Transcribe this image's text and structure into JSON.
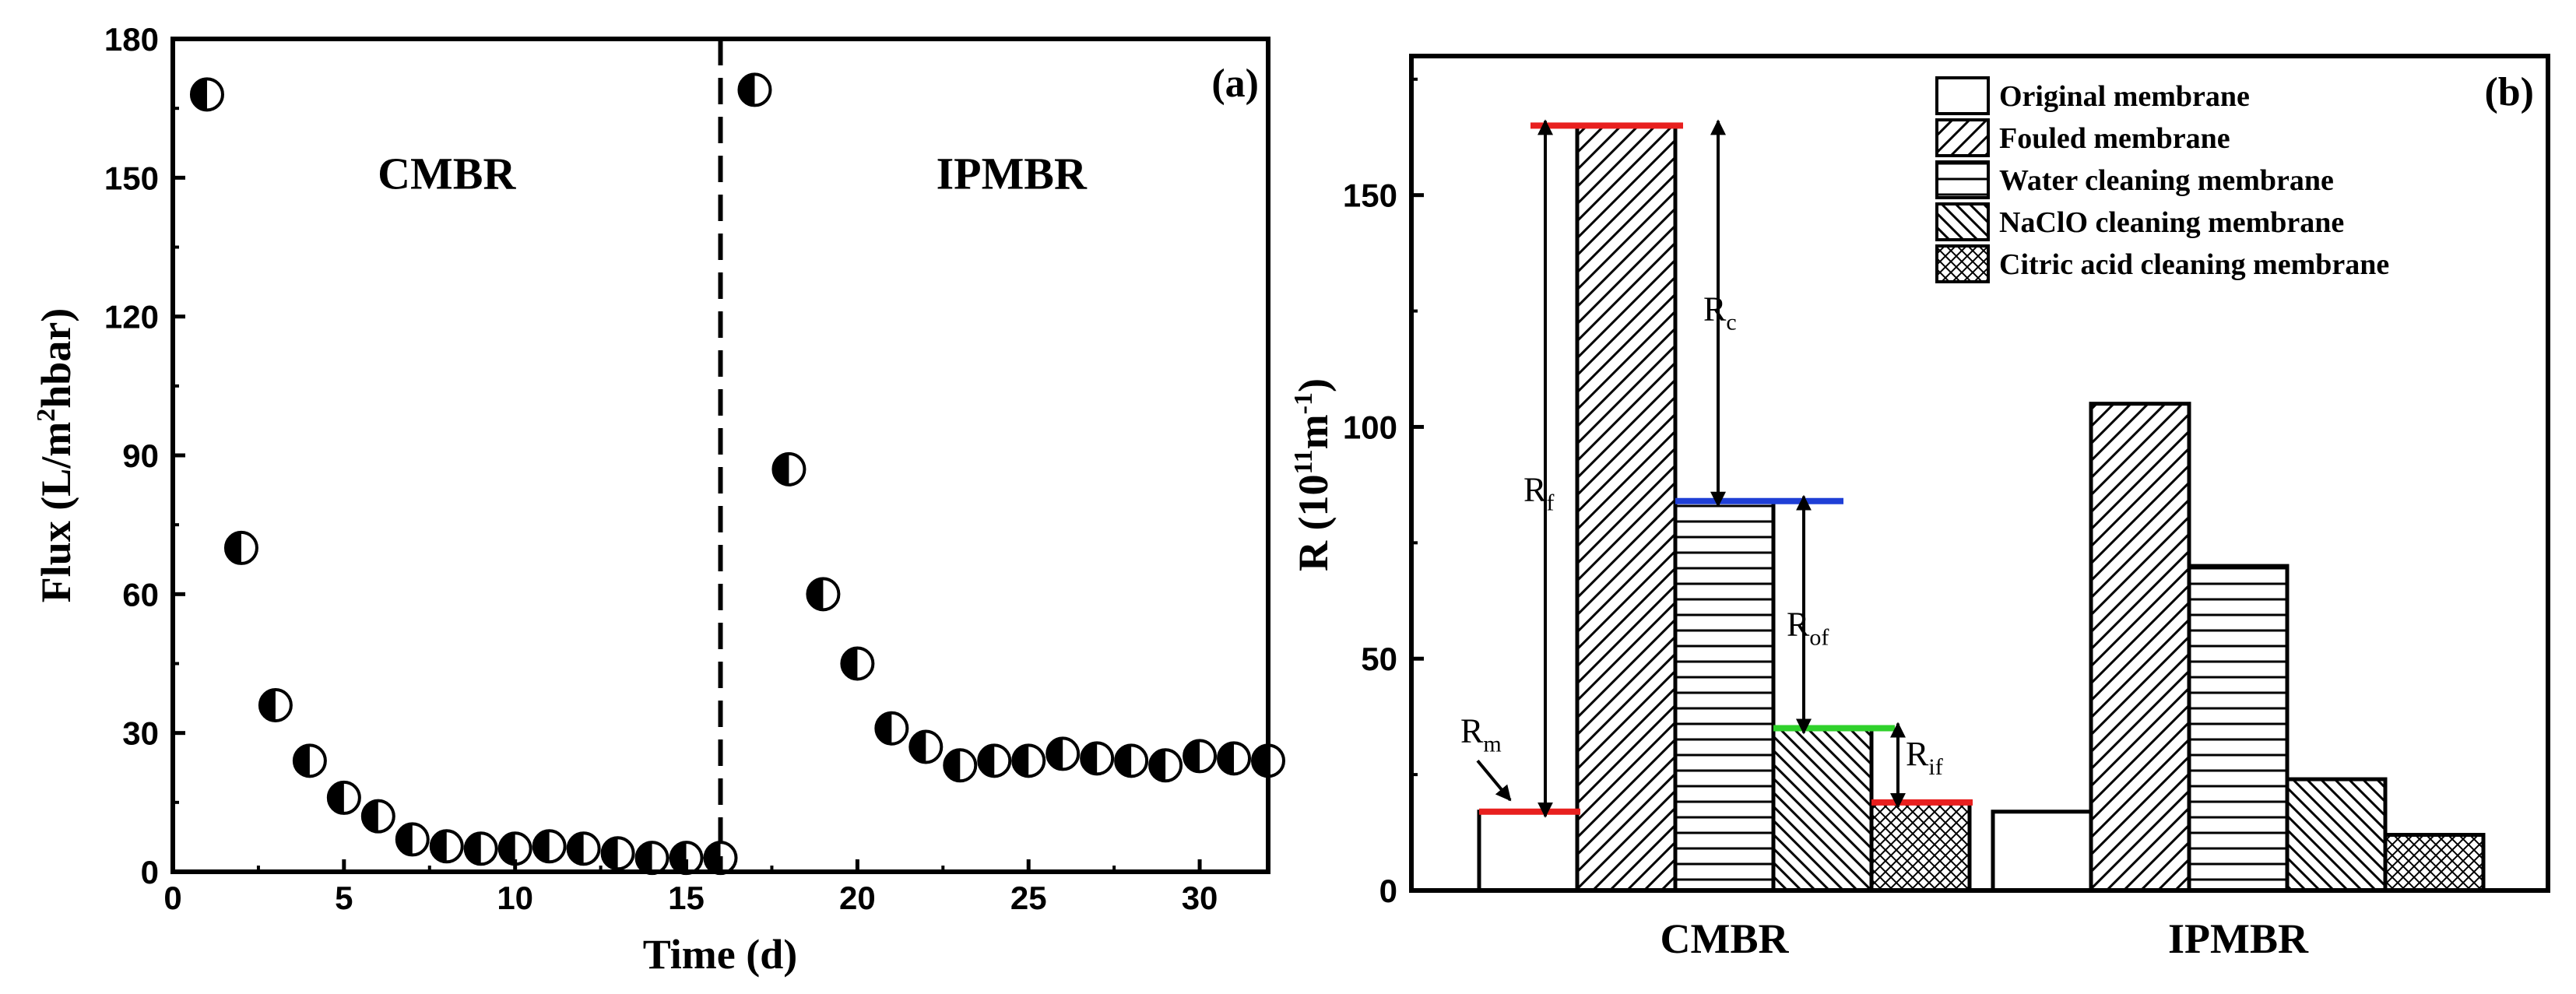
{
  "chart_data": [
    {
      "panel": "(a)",
      "type": "scatter",
      "xlabel": "Time (d)",
      "ylabel_main": "Flux (L/m",
      "ylabel_sup": "2",
      "ylabel_tail": "hbar)",
      "xlim": [
        0,
        32
      ],
      "ylim": [
        0,
        180
      ],
      "xticks": [
        "0",
        "5",
        "10",
        "15",
        "20",
        "25",
        "30"
      ],
      "yticks": [
        "0",
        "30",
        "60",
        "90",
        "120",
        "150",
        "180"
      ],
      "divider_x": 16,
      "annotations": [
        {
          "text": "CMBR",
          "x": 8,
          "y": 151
        },
        {
          "text": "IPMBR",
          "x": 24.5,
          "y": 151
        }
      ],
      "series": [
        {
          "name": "Flux",
          "x": [
            1,
            2,
            3,
            4,
            5,
            6,
            7,
            8,
            9,
            10,
            11,
            12,
            13,
            14,
            15,
            16,
            17,
            18,
            19,
            20,
            21,
            22,
            23,
            24,
            25,
            26,
            27,
            28,
            29,
            30,
            31,
            32
          ],
          "y": [
            168,
            70,
            36,
            24,
            16,
            12,
            7,
            5.5,
            5,
            5,
            5.5,
            5,
            4,
            3,
            3,
            3,
            169,
            87,
            60,
            45,
            31,
            27,
            23,
            24,
            24,
            25.5,
            24.5,
            24,
            23,
            25,
            24.5,
            24
          ]
        }
      ]
    },
    {
      "panel": "(b)",
      "type": "bar",
      "ylabel_main": "R (10",
      "ylabel_sup1": "11",
      "ylabel_mid": "m",
      "ylabel_sup2": "-1",
      "ylabel_tail": ")",
      "ylim": [
        0,
        180
      ],
      "yticks": [
        "0",
        "50",
        "100",
        "150"
      ],
      "categories": [
        "CMBR",
        "IPMBR"
      ],
      "series": [
        {
          "name": "Original membrane",
          "pattern": "none",
          "values": [
            17,
            17
          ]
        },
        {
          "name": "Fouled membrane",
          "pattern": "diag-up",
          "values": [
            165,
            105
          ]
        },
        {
          "name": "Water cleaning membrane",
          "pattern": "horizontal",
          "values": [
            84,
            70
          ]
        },
        {
          "name": "NaClO cleaning membrane",
          "pattern": "diag-down",
          "values": [
            35,
            24
          ]
        },
        {
          "name": "Citric acid cleaning membrane",
          "pattern": "crosshatch",
          "values": [
            19,
            12
          ]
        }
      ],
      "legend_labels": [
        "Original membrane",
        "Fouled membrane",
        "Water cleaning membrane",
        "NaClO cleaning membrane",
        "Citric acid cleaning membrane"
      ],
      "resistance_labels": {
        "rm": {
          "main": "R",
          "sub": "m"
        },
        "rf": {
          "main": "R",
          "sub": "f"
        },
        "rc": {
          "main": "R",
          "sub": "c"
        },
        "rof": {
          "main": "R",
          "sub": "of"
        },
        "rif": {
          "main": "R",
          "sub": "if"
        }
      },
      "level_lines": [
        {
          "value": 17,
          "color": "#e8201f"
        },
        {
          "value": 165,
          "color": "#e8201f"
        },
        {
          "value": 84,
          "color": "#1f3fd6"
        },
        {
          "value": 35,
          "color": "#2fd12b"
        },
        {
          "value": 19,
          "color": "#e8201f"
        }
      ]
    }
  ]
}
